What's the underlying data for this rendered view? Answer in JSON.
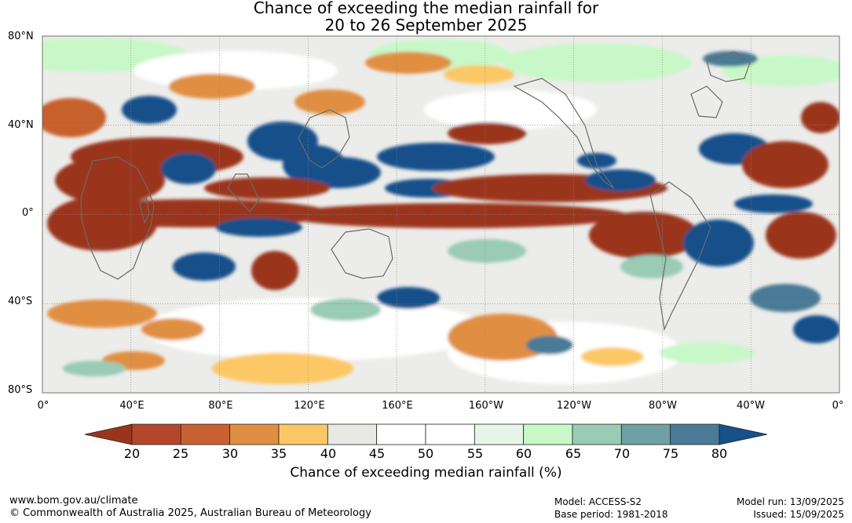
{
  "title_line1": "Chance of exceeding the median rainfall for",
  "title_line2": "20 to 26 September 2025",
  "lat_labels": [
    "80°N",
    "40°N",
    "0°",
    "40°S",
    "80°S"
  ],
  "lon_labels": [
    "0°",
    "40°E",
    "80°E",
    "120°E",
    "160°E",
    "160°W",
    "120°W",
    "80°W",
    "40°W",
    "0°"
  ],
  "colorbar": {
    "ticks": [
      "20",
      "25",
      "30",
      "35",
      "40",
      "45",
      "50",
      "55",
      "60",
      "65",
      "70",
      "75",
      "80"
    ],
    "colors": [
      "#9a351c",
      "#b4462b",
      "#c8602f",
      "#e08f42",
      "#fcc865",
      "#e8e8e4",
      "#ffffff",
      "#ffffff",
      "#e6f5e6",
      "#c8f8c8",
      "#99cbb5",
      "#6ea0a4",
      "#4a7a96",
      "#18508a"
    ],
    "label": "Chance of exceeding median rainfall (%)"
  },
  "footer": {
    "website": "www.bom.gov.au/climate",
    "copyright": "© Commonwealth of Australia 2025, Australian Bureau of Meteorology",
    "model": "Model: ACCESS-S2",
    "base_period": "Base period: 1981-2018",
    "model_run": "Model run: 13/09/2025",
    "issued": "Issued: 15/09/2025"
  }
}
